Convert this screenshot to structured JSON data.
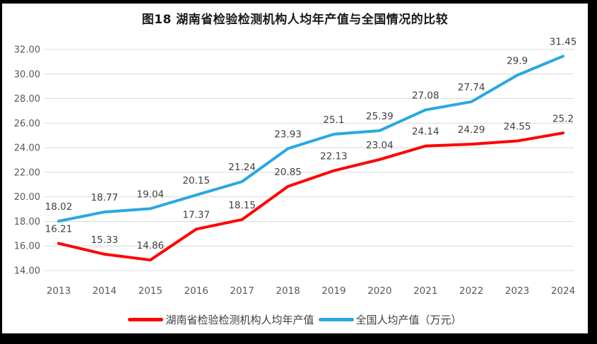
{
  "title": "图18 湖南省检验检测机构人均年产值与全国情况的比较",
  "chart_data": {
    "type": "line",
    "categories": [
      "2013",
      "2014",
      "2015",
      "2016",
      "2017",
      "2018",
      "2019",
      "2020",
      "2021",
      "2022",
      "2023",
      "2024"
    ],
    "series": [
      {
        "name": "湖南省检验检测机构人均年产值",
        "color": "#fe0000",
        "values": [
          16.21,
          15.33,
          14.86,
          17.37,
          18.15,
          20.85,
          22.13,
          23.04,
          24.14,
          24.29,
          24.55,
          25.2
        ],
        "labels": [
          "16.21",
          "15.33",
          "14.86",
          "17.37",
          "18.15",
          "20.85",
          "22.13",
          "23.04",
          "24.14",
          "24.29",
          "24.55",
          "25.2"
        ]
      },
      {
        "name": "全国人均产值（万元）",
        "color": "#29a8e0",
        "values": [
          18.02,
          18.77,
          19.04,
          20.15,
          21.24,
          23.93,
          25.1,
          25.39,
          27.08,
          27.74,
          29.9,
          31.45
        ],
        "labels": [
          "18.02",
          "18.77",
          "19.04",
          "20.15",
          "21.24",
          "23.93",
          "25.1",
          "25.39",
          "27.08",
          "27.74",
          "29.9",
          "31.45"
        ]
      }
    ],
    "ylim": [
      14,
      32
    ],
    "ytick_step": 2,
    "ytick_labels": [
      "14.00",
      "16.00",
      "18.00",
      "20.00",
      "22.00",
      "24.00",
      "26.00",
      "28.00",
      "30.00",
      "32.00"
    ],
    "grid": "horizontal",
    "gridline_color": "#d9d9d9",
    "axis_text_color": "#595959",
    "data_label_color": "#404040",
    "legend_position": "bottom"
  },
  "legend": {
    "items": [
      {
        "label": "湖南省检验检测机构人均年产值",
        "color": "#fe0000"
      },
      {
        "label": "全国人均产值（万元）",
        "color": "#29a8e0"
      }
    ]
  }
}
